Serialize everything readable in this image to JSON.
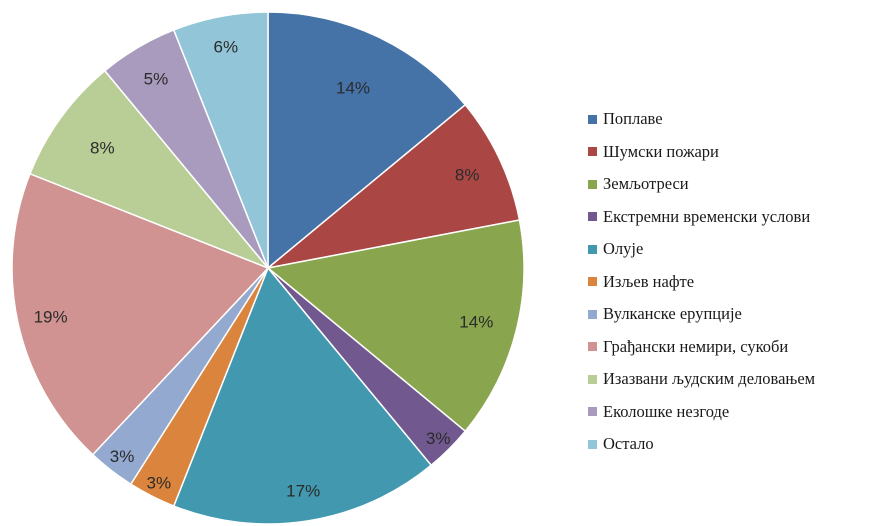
{
  "chart_data": {
    "type": "pie",
    "title": "",
    "start": "top",
    "direction": "clockwise",
    "legend_position": "right",
    "categories": [
      "Поплаве",
      "Шумски пожари",
      "Земљотреси",
      "Екстремни временски услови",
      "Олује",
      "Изљев нафте",
      "Вулканске ерупције",
      "Грађански немири, сукоби",
      "Изазвани људским деловањем",
      "Еколошке незгоде",
      "Остало"
    ],
    "values": [
      14,
      8,
      14,
      3,
      17,
      3,
      3,
      19,
      8,
      5,
      6
    ],
    "data_labels": [
      "14%",
      "8%",
      "14%",
      "3%",
      "17%",
      "3%",
      "3%",
      "19%",
      "8%",
      "5%",
      "6%"
    ],
    "colors": [
      "#4572A7",
      "#AA4643",
      "#89A54E",
      "#71588F",
      "#4198AF",
      "#DB843D",
      "#93A9CF",
      "#D19392",
      "#B9CD96",
      "#A99BBD",
      "#92C5D7"
    ]
  }
}
